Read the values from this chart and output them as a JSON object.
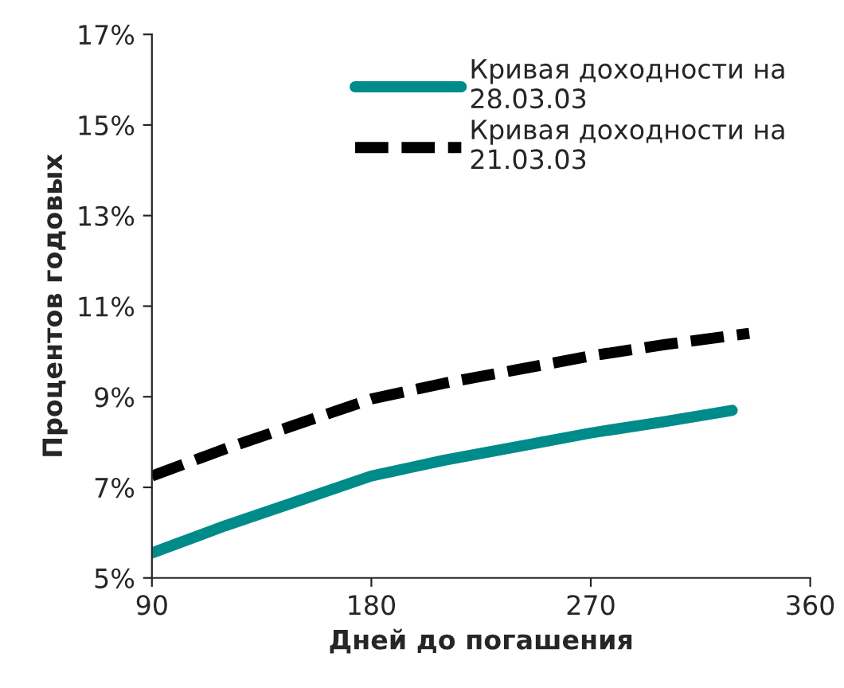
{
  "chart_data": {
    "type": "line",
    "xlabel": "Дней до погашения",
    "ylabel": "Процентов годовых",
    "xlim": [
      90,
      360
    ],
    "xticks": [
      90,
      180,
      270,
      360
    ],
    "ylim": [
      5,
      17
    ],
    "yticks": [
      {
        "value": 5,
        "label": "5%"
      },
      {
        "value": 7,
        "label": "7%"
      },
      {
        "value": 9,
        "label": "9%"
      },
      {
        "value": 11,
        "label": "11%"
      },
      {
        "value": 13,
        "label": "13%"
      },
      {
        "value": 15,
        "label": "15%"
      },
      {
        "value": 17,
        "label": "17%"
      }
    ],
    "grid": false,
    "legend": "top right",
    "marker": "none",
    "series": [
      {
        "name": "Кривая доходности на 28.03.03",
        "color": "#008b8b",
        "line_style": "solid",
        "x": [
          90,
          120,
          150,
          180,
          210,
          240,
          270,
          300,
          328
        ],
        "values": [
          5.55,
          6.15,
          6.7,
          7.25,
          7.6,
          7.9,
          8.2,
          8.45,
          8.7
        ]
      },
      {
        "name": "Кривая доходности на 21.03.03",
        "color": "#000000",
        "line_style": "dashed",
        "x": [
          90,
          120,
          150,
          180,
          210,
          240,
          270,
          300,
          335
        ],
        "values": [
          7.25,
          7.85,
          8.4,
          8.95,
          9.3,
          9.6,
          9.9,
          10.15,
          10.4
        ]
      }
    ]
  }
}
